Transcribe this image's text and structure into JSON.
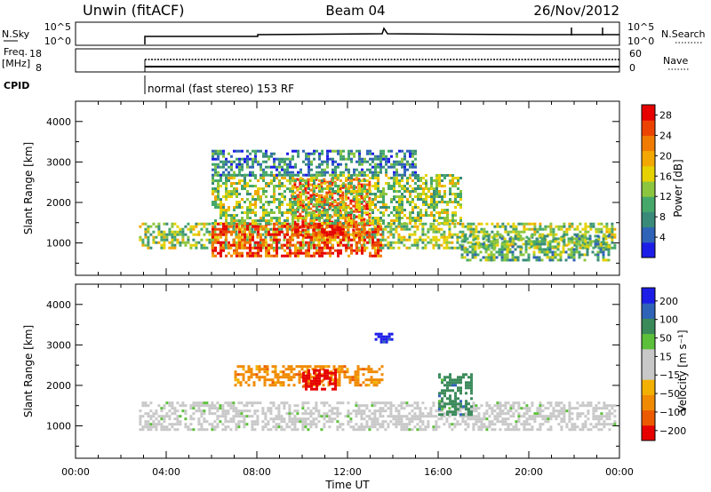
{
  "header": {
    "station": "Unwin (fitACF)",
    "beam": "Beam 04",
    "date": "26/Nov/2012"
  },
  "top_panels": {
    "nsky": {
      "label": "N.Sky",
      "ticks": [
        "10^5",
        "10^0"
      ],
      "right_label": "N.Search",
      "right_ticks": [
        "10^5",
        "10^0"
      ]
    },
    "freq": {
      "label_line1": "Freq.",
      "label_line2": "[MHz]",
      "ticks": [
        "18",
        "8"
      ],
      "right_label": "Nave",
      "right_ticks": [
        "60",
        "0"
      ]
    },
    "cpid": {
      "label": "CPID",
      "mode": "normal (fast stereo) 153 RF"
    }
  },
  "colors": {
    "power_scale": [
      "#1d1de8",
      "#2f63b8",
      "#3a8a7a",
      "#45a86a",
      "#8cc63e",
      "#e6d200",
      "#f2a800",
      "#f07b00",
      "#ec4400",
      "#e60000"
    ],
    "velocity_scale": [
      "#1d1de8",
      "#2f63b8",
      "#3a8a5a",
      "#5cc03a",
      "#c8c8c8",
      "#c8c8c8",
      "#f2b100",
      "#f08a00",
      "#ec5a00",
      "#e60000"
    ]
  },
  "chart_data": [
    {
      "type": "heatmap",
      "name": "power",
      "ylabel": "Slant Range [km]",
      "xlabel": "",
      "y_ticks": [
        "1000",
        "2000",
        "3000",
        "4000"
      ],
      "ylim": [
        200,
        4500
      ],
      "colorbar": {
        "label": "Power [dB]",
        "ticks": [
          "4",
          "8",
          "12",
          "16",
          "20",
          "24",
          "28"
        ],
        "range": [
          0,
          30
        ]
      },
      "echo_regions": [
        {
          "t_start": 2.8,
          "t_end": 23.8,
          "range_min": 900,
          "range_max": 1500,
          "level": 14
        },
        {
          "t_start": 6.0,
          "t_end": 13.5,
          "range_min": 700,
          "range_max": 1500,
          "level": 26
        },
        {
          "t_start": 9.5,
          "t_end": 13.0,
          "range_min": 1200,
          "range_max": 2600,
          "level": 24
        },
        {
          "t_start": 6.0,
          "t_end": 17.0,
          "range_min": 1500,
          "range_max": 2700,
          "level": 14
        },
        {
          "t_start": 6.0,
          "t_end": 15.0,
          "range_min": 2700,
          "range_max": 3300,
          "level": 8
        },
        {
          "t_start": 17.0,
          "t_end": 23.5,
          "range_min": 600,
          "range_max": 1200,
          "level": 10
        }
      ]
    },
    {
      "type": "heatmap",
      "name": "velocity",
      "ylabel": "Slant Range [km]",
      "xlabel": "Time UT",
      "y_ticks": [
        "1000",
        "2000",
        "3000",
        "4000"
      ],
      "x_ticks": [
        "00:00",
        "04:00",
        "08:00",
        "12:00",
        "16:00",
        "20:00",
        "00:00"
      ],
      "ylim": [
        200,
        4500
      ],
      "colorbar": {
        "label": "Velocity [m s⁻¹]",
        "ticks": [
          "200",
          "100",
          "50",
          "15",
          "−15",
          "−50",
          "−100",
          "−200"
        ]
      },
      "echo_regions": [
        {
          "t_start": 2.8,
          "t_end": 23.8,
          "range_min": 900,
          "range_max": 1600,
          "velocity": 0
        },
        {
          "t_start": 7.0,
          "t_end": 13.5,
          "range_min": 2000,
          "range_max": 2500,
          "velocity": -60
        },
        {
          "t_start": 10.0,
          "t_end": 11.5,
          "range_min": 1900,
          "range_max": 2400,
          "velocity": -200
        },
        {
          "t_start": 13.2,
          "t_end": 14.0,
          "range_min": 3100,
          "range_max": 3300,
          "velocity": 220
        },
        {
          "t_start": 16.0,
          "t_end": 17.5,
          "range_min": 1300,
          "range_max": 2300,
          "velocity": 40
        }
      ]
    }
  ]
}
